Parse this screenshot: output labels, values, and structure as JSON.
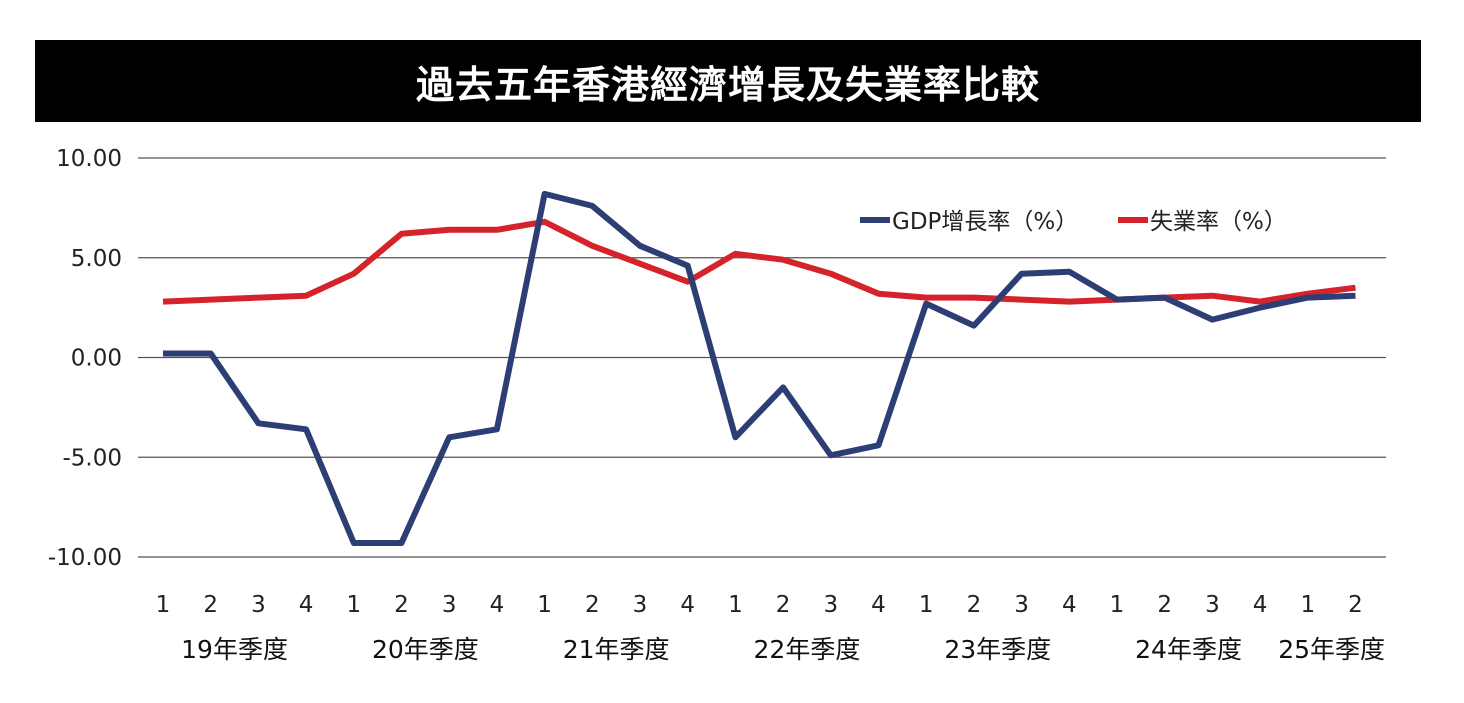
{
  "chart_data": {
    "type": "line",
    "title": "過去五年香港經濟增長及失業率比較",
    "xlabel": "",
    "ylabel": "",
    "ylim": [
      -10,
      10
    ],
    "yticks": [
      "10.00",
      "5.00",
      "0.00",
      "-5.00",
      "-10.00"
    ],
    "quarters": [
      "1",
      "2",
      "3",
      "4",
      "1",
      "2",
      "3",
      "4",
      "1",
      "2",
      "3",
      "4",
      "1",
      "2",
      "3",
      "4",
      "1",
      "2",
      "3",
      "4",
      "1",
      "2",
      "3",
      "4",
      "1",
      "2"
    ],
    "year_labels": [
      "19年季度",
      "20年季度",
      "21年季度",
      "22年季度",
      "23年季度",
      "24年季度",
      "25年季度"
    ],
    "grid": true,
    "legend_position": "top-right",
    "series": [
      {
        "name": "GDP增長率（%）",
        "color": "#2d3e75",
        "values": [
          0.2,
          0.2,
          -3.3,
          -3.6,
          -9.3,
          -9.3,
          -4.0,
          -3.6,
          8.2,
          7.6,
          5.6,
          4.6,
          -4.0,
          -1.5,
          -4.9,
          -4.4,
          2.7,
          1.6,
          4.2,
          4.3,
          2.9,
          3.0,
          1.9,
          2.5,
          3.0,
          3.1
        ]
      },
      {
        "name": "失業率（%）",
        "color": "#d4232a",
        "values": [
          2.8,
          2.9,
          3.0,
          3.1,
          4.2,
          6.2,
          6.4,
          6.4,
          6.8,
          5.6,
          4.7,
          3.8,
          5.2,
          4.9,
          4.2,
          3.2,
          3.0,
          3.0,
          2.9,
          2.8,
          2.9,
          3.0,
          3.1,
          2.8,
          3.2,
          3.5
        ]
      }
    ]
  }
}
